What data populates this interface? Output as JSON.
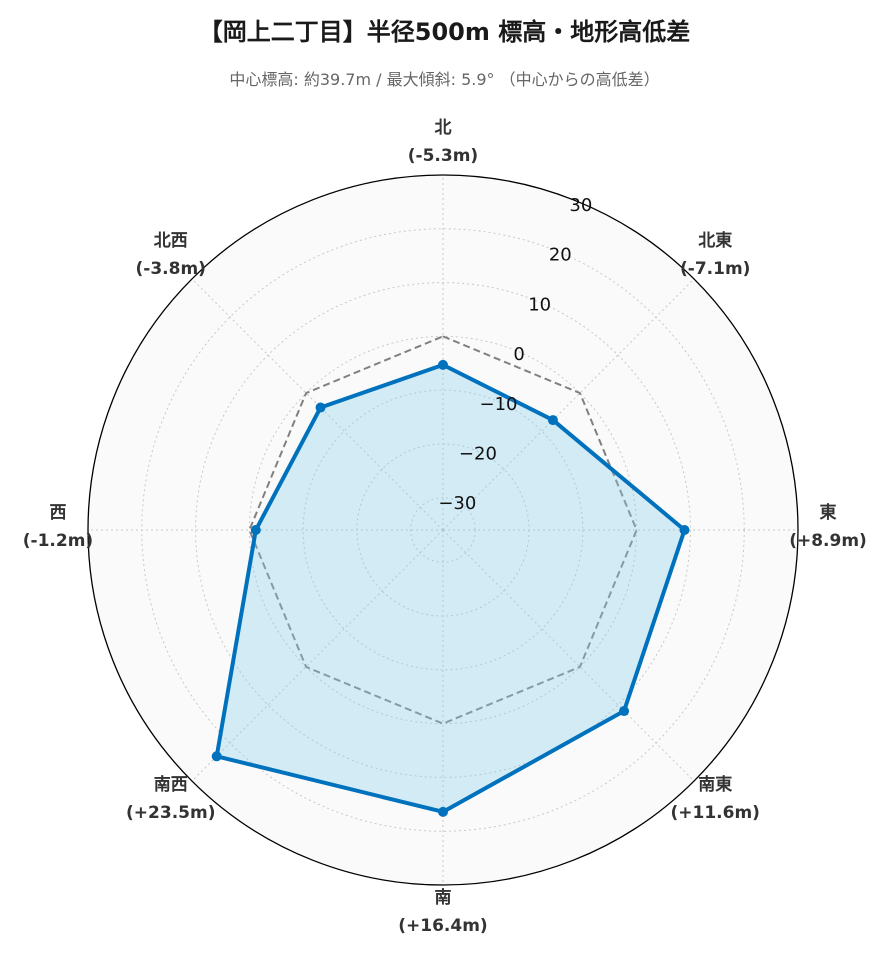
{
  "title": "【岡上二丁目】半径500m 標高・地形高低差",
  "subtitle": "中心標高: 約39.7m / 最大傾斜: 5.9° （中心からの高低差）",
  "chart_data": {
    "type": "radar",
    "categories": [
      "北",
      "北東",
      "東",
      "南東",
      "南",
      "南西",
      "西",
      "北西"
    ],
    "category_values_text": [
      "(-5.3m)",
      "(-7.1m)",
      "(+8.9m)",
      "(+11.6m)",
      "(+16.4m)",
      "(+23.5m)",
      "(-1.2m)",
      "(-3.8m)"
    ],
    "series": [
      {
        "values": [
          -5.3,
          -7.1,
          8.9,
          11.6,
          16.4,
          23.5,
          -1.2,
          -3.8
        ],
        "color": "#0072bd",
        "fill": "#87ceeb"
      },
      {
        "values": [
          0,
          0,
          0,
          0,
          0,
          0,
          0,
          0
        ],
        "color": "#808080",
        "style": "dashed"
      }
    ],
    "rlim": [
      -36,
      30
    ],
    "rticks": [
      -30,
      -20,
      -10,
      0,
      10,
      20,
      30
    ],
    "rtick_labels": [
      "−30",
      "−20",
      "−10",
      "0",
      "10",
      "20",
      "30"
    ],
    "grid": true
  }
}
